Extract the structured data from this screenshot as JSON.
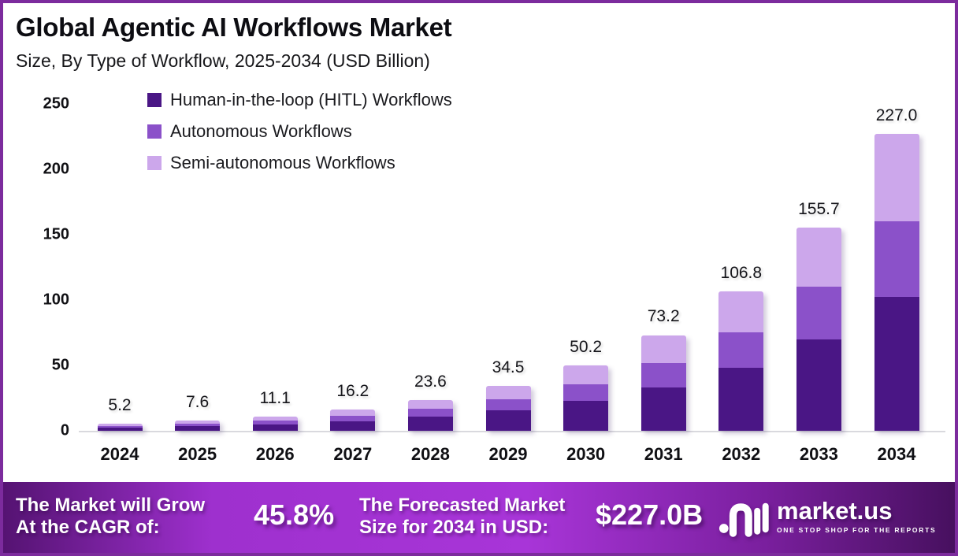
{
  "header": {
    "title": "Global Agentic AI Workflows Market",
    "subtitle": "Size, By Type of Workflow, 2025-2034 (USD Billion)"
  },
  "chart_data": {
    "type": "bar",
    "stacked": true,
    "title": "Global Agentic AI Workflows Market",
    "subtitle": "Size, By Type of Workflow, 2025-2034 (USD Billion)",
    "unit": "USD Billion",
    "categories": [
      "2024",
      "2025",
      "2026",
      "2027",
      "2028",
      "2029",
      "2030",
      "2031",
      "2032",
      "2033",
      "2034"
    ],
    "series": [
      {
        "name": "Human-in-the-loop (HITL) Workflows",
        "color": "#4A1685",
        "values": [
          2.3,
          3.4,
          5.0,
          7.3,
          10.6,
          15.5,
          22.6,
          33.0,
          48.1,
          70.0,
          102.2
        ]
      },
      {
        "name": "Autonomous Workflows",
        "color": "#8B51C9",
        "values": [
          1.3,
          2.0,
          2.9,
          4.2,
          6.1,
          8.9,
          12.9,
          18.8,
          27.4,
          40.0,
          58.3
        ]
      },
      {
        "name": "Semi-autonomous Workflows",
        "color": "#CCA7EB",
        "values": [
          1.6,
          2.2,
          3.2,
          4.7,
          6.9,
          10.1,
          14.7,
          21.4,
          31.3,
          45.7,
          66.5
        ]
      }
    ],
    "totals": [
      "5.2",
      "7.6",
      "11.1",
      "16.2",
      "23.6",
      "34.5",
      "50.2",
      "73.2",
      "106.8",
      "155.7",
      "227.0"
    ],
    "ylim": [
      0,
      250
    ],
    "yticks": [
      250,
      200,
      150,
      100,
      50,
      0
    ],
    "grid": false,
    "legend_position": "top-left"
  },
  "legend": {
    "items": [
      {
        "label": "Human-in-the-loop (HITL) Workflows",
        "color": "#4A1685"
      },
      {
        "label": "Autonomous Workflows",
        "color": "#8B51C9"
      },
      {
        "label": "Semi-autonomous Workflows",
        "color": "#CCA7EB"
      }
    ]
  },
  "footer": {
    "cagr_label_line1": "The Market will Grow",
    "cagr_label_line2": "At the CAGR of:",
    "cagr_value": "45.8%",
    "forecast_label_line1": "The Forecasted Market",
    "forecast_label_line2": "Size for 2034 in USD:",
    "forecast_value": "$227.0B",
    "brand_name": "market.us",
    "brand_tagline": "ONE STOP SHOP FOR THE REPORTS"
  },
  "colors": {
    "frame_border": "#7C2B9D",
    "axis_line": "#D9D9DE",
    "footer_gradient": [
      "#551372",
      "#A835D8",
      "#47105F"
    ]
  }
}
